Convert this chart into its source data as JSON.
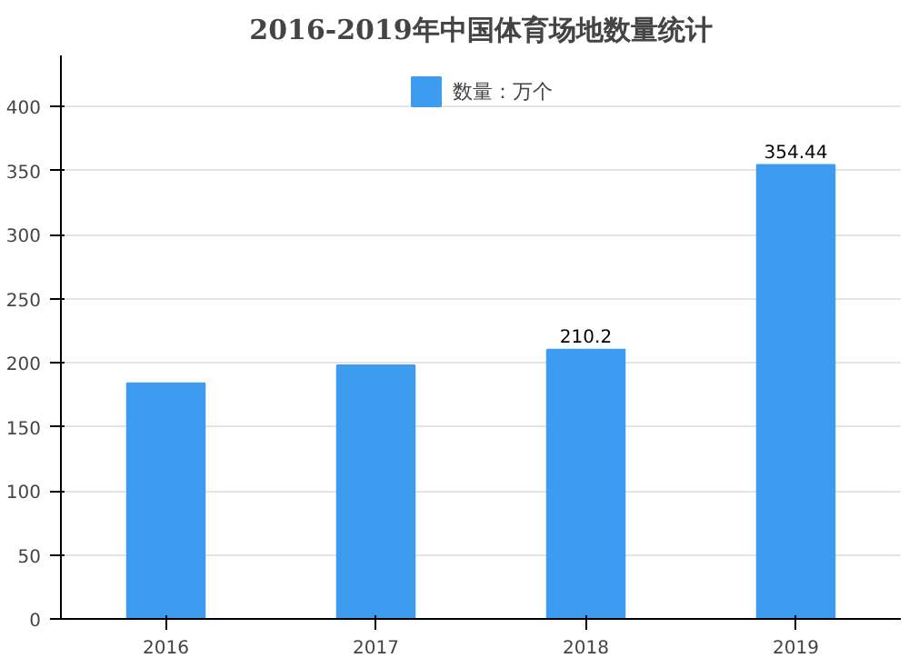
{
  "chart_data": {
    "type": "bar",
    "title": "2016-2019年中国体育场地数量统计",
    "categories": [
      "2016",
      "2017",
      "2018",
      "2019"
    ],
    "series": [
      {
        "name": "数量：万个",
        "color": "#3d9bf0",
        "values": [
          184,
          198,
          210.2,
          354.44
        ],
        "value_labels": [
          null,
          null,
          "210.2",
          "354.44"
        ]
      }
    ],
    "ylim": [
      0,
      400
    ],
    "yticks": [
      0,
      50,
      100,
      150,
      200,
      250,
      300,
      350,
      400
    ],
    "grid": "y",
    "legend": "top"
  }
}
